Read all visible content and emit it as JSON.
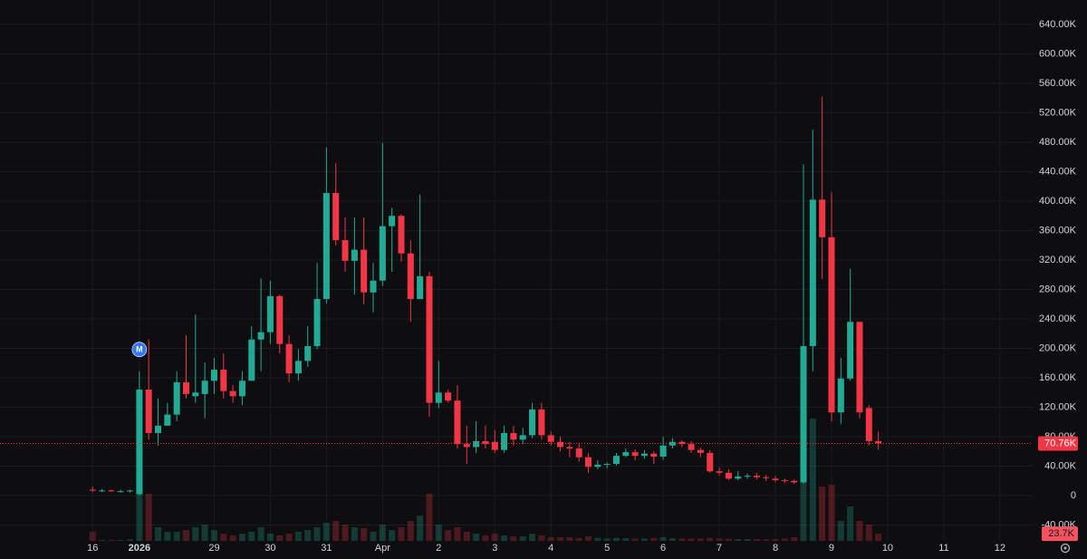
{
  "chart_data": {
    "type": "candlestick",
    "up_color": "#22ab94",
    "down_color": "#f23645",
    "grid": true,
    "event_marker": "M",
    "event_marker_index": 5,
    "ylim": [
      -61.5,
      673.2
    ],
    "yticks": [
      {
        "value": 640,
        "label": "640.00K"
      },
      {
        "value": 600,
        "label": "600.00K"
      },
      {
        "value": 560,
        "label": "560.00K"
      },
      {
        "value": 520,
        "label": "520.00K"
      },
      {
        "value": 480,
        "label": "480.00K"
      },
      {
        "value": 440,
        "label": "440.00K"
      },
      {
        "value": 400,
        "label": "400.00K"
      },
      {
        "value": 360,
        "label": "360.00K"
      },
      {
        "value": 320,
        "label": "320.00K"
      },
      {
        "value": 280,
        "label": "280.00K"
      },
      {
        "value": 240,
        "label": "240.00K"
      },
      {
        "value": 200,
        "label": "200.00K"
      },
      {
        "value": 160,
        "label": "160.00K"
      },
      {
        "value": 120,
        "label": "120.00K"
      },
      {
        "value": 80,
        "label": "80.00K"
      },
      {
        "value": 40,
        "label": "40.00K"
      },
      0,
      {
        "value": -40,
        "label": "-40.00K"
      }
    ],
    "xlim": [
      -9.9,
      100.5
    ],
    "xticks": [
      {
        "value": 0,
        "label": "16"
      },
      {
        "value": 5,
        "label": "2026"
      },
      {
        "value": 13,
        "label": "29"
      },
      {
        "value": 19,
        "label": "30"
      },
      {
        "value": 25,
        "label": "31"
      },
      {
        "value": 31,
        "label": "Apr"
      },
      {
        "value": 37,
        "label": "2"
      },
      {
        "value": 43,
        "label": "3"
      },
      {
        "value": 49,
        "label": "4"
      },
      {
        "value": 55,
        "label": "5"
      },
      {
        "value": 61,
        "label": "6"
      },
      {
        "value": 67,
        "label": "7"
      },
      {
        "value": 73,
        "label": "8"
      },
      {
        "value": 79,
        "label": "9"
      },
      {
        "value": 85,
        "label": "10"
      },
      {
        "value": 91,
        "label": "11"
      },
      {
        "value": 97,
        "label": "12"
      }
    ],
    "open": [
      8,
      7,
      7,
      6,
      6,
      2,
      144,
      85,
      95,
      110,
      154,
      135,
      138,
      156,
      171,
      142,
      135,
      156,
      212,
      222,
      271,
      206,
      166,
      183,
      203,
      267,
      411,
      347,
      319,
      334,
      276,
      292,
      366,
      380,
      329,
      267,
      298,
      126,
      140,
      129,
      70,
      66,
      74,
      73,
      62,
      85,
      76,
      82,
      117,
      82,
      73,
      66,
      64,
      52,
      39,
      42,
      43,
      54,
      59,
      54,
      57,
      53,
      68,
      73,
      70,
      62,
      58,
      33,
      31,
      23,
      26,
      27,
      25,
      23,
      21,
      20,
      18,
      203,
      402,
      351,
      113,
      159,
      236,
      119,
      74
    ],
    "high": [
      12,
      9,
      8,
      8,
      8,
      169,
      212,
      132,
      126,
      169,
      218,
      246,
      181,
      187,
      193,
      150,
      169,
      230,
      295,
      292,
      273,
      218,
      199,
      230,
      316,
      473,
      452,
      378,
      378,
      378,
      316,
      479,
      391,
      382,
      347,
      409,
      304,
      183,
      144,
      150,
      95,
      101,
      95,
      89,
      95,
      95,
      92,
      126,
      126,
      87,
      80,
      73,
      70,
      58,
      48,
      45,
      58,
      64,
      63,
      62,
      60,
      80,
      78,
      75,
      74,
      65,
      62,
      38,
      36,
      33,
      30,
      31,
      28,
      27,
      23,
      22,
      450,
      497,
      542,
      412,
      187,
      308,
      236,
      123,
      87
    ],
    "low": [
      5,
      5,
      5,
      4,
      4,
      0,
      76,
      68,
      95,
      101,
      132,
      126,
      105,
      138,
      132,
      126,
      123,
      156,
      169,
      206,
      193,
      154,
      156,
      175,
      199,
      261,
      340,
      304,
      273,
      260,
      249,
      285,
      304,
      318,
      236,
      267,
      107,
      119,
      126,
      64,
      43,
      58,
      64,
      58,
      58,
      68,
      70,
      78,
      76,
      68,
      60,
      52,
      46,
      31,
      36,
      37,
      41,
      52,
      48,
      50,
      43,
      49,
      64,
      66,
      58,
      52,
      31,
      27,
      21,
      21,
      23,
      22,
      20,
      18,
      17,
      16,
      16,
      169,
      294,
      101,
      97,
      156,
      105,
      68,
      62
    ],
    "close": [
      7,
      7,
      6,
      6,
      7,
      144,
      85,
      95,
      110,
      154,
      138,
      140,
      156,
      171,
      142,
      135,
      156,
      212,
      222,
      271,
      206,
      166,
      183,
      203,
      267,
      411,
      347,
      319,
      334,
      276,
      292,
      366,
      380,
      329,
      267,
      298,
      126,
      140,
      129,
      70,
      66,
      74,
      70,
      62,
      85,
      76,
      82,
      117,
      82,
      73,
      66,
      64,
      52,
      39,
      42,
      43,
      54,
      59,
      54,
      57,
      53,
      68,
      73,
      70,
      62,
      58,
      33,
      31,
      23,
      26,
      27,
      25,
      24,
      21,
      20,
      18,
      203,
      402,
      351,
      113,
      159,
      236,
      113,
      74,
      70.76
    ],
    "volume": [
      30,
      3,
      3,
      3,
      5,
      156,
      156,
      45,
      30,
      30,
      36,
      45,
      54,
      36,
      24,
      18,
      24,
      30,
      45,
      24,
      18,
      24,
      30,
      36,
      45,
      60,
      66,
      54,
      45,
      42,
      30,
      54,
      36,
      45,
      66,
      84,
      156,
      54,
      36,
      45,
      30,
      24,
      18,
      24,
      18,
      15,
      15,
      24,
      18,
      12,
      12,
      12,
      10,
      15,
      10,
      8,
      10,
      9,
      8,
      8,
      10,
      12,
      9,
      8,
      8,
      8,
      10,
      8,
      7,
      6,
      6,
      6,
      5,
      6,
      8,
      12,
      405,
      405,
      180,
      186,
      66,
      114,
      66,
      54,
      23.7
    ],
    "last_volume_label": "23.7K",
    "last_price": {
      "value": 70.76,
      "label": "70.76K"
    }
  }
}
